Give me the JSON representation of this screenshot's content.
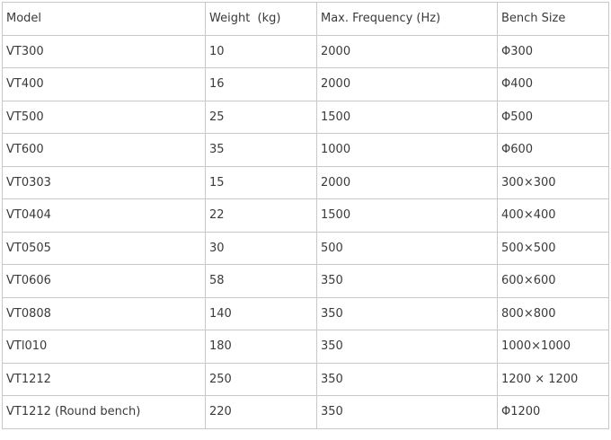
{
  "table": {
    "headers": [
      "Model",
      "Weight  (kg)",
      "Max. Frequency (Hz)",
      "Bench Size"
    ],
    "rows": [
      [
        "VT300",
        "10",
        "2000",
        "Φ300"
      ],
      [
        "VT400",
        "16",
        "2000",
        "Φ400"
      ],
      [
        "VT500",
        "25",
        "1500",
        "Φ500"
      ],
      [
        "VT600",
        "35",
        "1000",
        "Φ600"
      ],
      [
        "VT0303",
        "15",
        "2000",
        "300×300"
      ],
      [
        "VT0404",
        "22",
        "1500",
        "400×400"
      ],
      [
        "VT0505",
        "30",
        "500",
        "500×500"
      ],
      [
        "VT0606",
        "58",
        "350",
        "600×600"
      ],
      [
        "VT0808",
        "140",
        "350",
        "800×800"
      ],
      [
        "VTl010",
        "180",
        "350",
        "1000×1000"
      ],
      [
        "VT1212",
        "250",
        "350",
        "1200 × 1200"
      ],
      [
        "VT1212 (Round bench)",
        "220",
        "350",
        "Φ1200"
      ]
    ]
  }
}
